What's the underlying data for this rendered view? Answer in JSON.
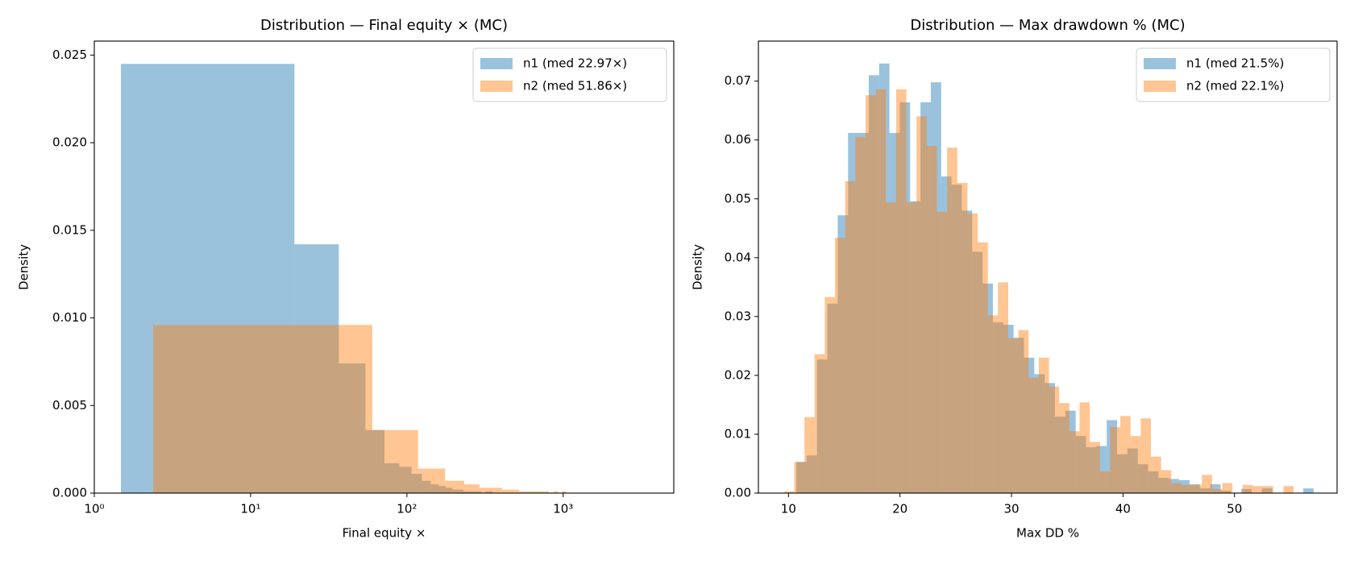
{
  "chart_data": [
    {
      "type": "histogram",
      "title": "Distribution — Final equity × (MC)",
      "x_label": "Final equity ×",
      "y_label": "Density",
      "xscale": "log",
      "xlim": [
        1,
        5100
      ],
      "ylim": [
        0,
        0.0258
      ],
      "xticks": [
        {
          "value": 1,
          "label": "10⁰"
        },
        {
          "value": 10,
          "label": "10¹"
        },
        {
          "value": 100,
          "label": "10²"
        },
        {
          "value": 1000,
          "label": "10³"
        }
      ],
      "yticks": [
        {
          "value": 0,
          "label": "0.000"
        },
        {
          "value": 0.005,
          "label": "0.005"
        },
        {
          "value": 0.01,
          "label": "0.010"
        },
        {
          "value": 0.015,
          "label": "0.015"
        },
        {
          "value": 0.02,
          "label": "0.020"
        },
        {
          "value": 0.025,
          "label": "0.025"
        }
      ],
      "legend": "upper right",
      "alpha": 0.45,
      "series": [
        {
          "name": "n1 (med 22.97×)",
          "color": "#1f77b4",
          "bins": [
            1.48,
            19.08,
            36.68,
            54.28,
            71.88,
            89.48,
            107.08,
            124.68,
            142.28,
            159.88,
            177.48,
            195.08,
            212.68,
            230.28,
            247.88,
            265.48,
            283.08,
            300.68,
            318.28,
            335.88,
            353.48
          ],
          "values": [
            0.0245,
            0.0142,
            0.0074,
            0.0036,
            0.0017,
            0.0015,
            0.0011,
            0.0007,
            0.0005,
            0.0004,
            0.0003,
            0.0002,
            0.0002,
            0.0001,
            0.0001,
            0.0001,
            0.0001,
            0,
            0.0001,
            0.0001
          ]
        },
        {
          "name": "n2 (med 51.86×)",
          "color": "#ff7f0e",
          "bins": [
            2.38,
            60.08,
            117.78,
            175.48,
            233.18,
            290.88,
            348.58,
            406.28,
            463.98,
            521.68,
            579.38,
            637.08,
            694.78,
            752.48,
            810.18,
            867.88,
            925.58,
            983.28,
            1040.98
          ],
          "values": [
            0.0096,
            0.0036,
            0.0014,
            0.0007,
            0.0005,
            0.0003,
            0.0003,
            0.0002,
            0.0002,
            0.0001,
            0.0001,
            0.0001,
            0.0001,
            0.0001,
            0,
            0.0001,
            0,
            0.0001
          ]
        }
      ]
    },
    {
      "type": "histogram",
      "title": "Distribution — Max drawdown % (MC)",
      "x_label": "Max DD %",
      "y_label": "Density",
      "xlim": [
        7.3,
        59.2
      ],
      "ylim": [
        0,
        0.0768
      ],
      "xticks": [
        10,
        20,
        30,
        40,
        50
      ],
      "yticks": [
        {
          "value": 0,
          "label": "0.00"
        },
        {
          "value": 0.01,
          "label": "0.01"
        },
        {
          "value": 0.02,
          "label": "0.02"
        },
        {
          "value": 0.03,
          "label": "0.03"
        },
        {
          "value": 0.04,
          "label": "0.04"
        },
        {
          "value": 0.05,
          "label": "0.05"
        },
        {
          "value": 0.06,
          "label": "0.06"
        },
        {
          "value": 0.07,
          "label": "0.07"
        }
      ],
      "legend": "upper right",
      "alpha": 0.45,
      "series": [
        {
          "name": "n1 (med 21.5%)",
          "color": "#1f77b4",
          "bins": [
            10.7,
            11.628,
            12.556,
            13.484,
            14.412,
            15.34,
            16.268,
            17.196,
            18.124,
            19.052,
            19.98,
            20.908,
            21.836,
            22.764,
            23.692,
            24.62,
            25.548,
            26.476,
            27.404,
            28.332,
            29.26,
            30.188,
            31.116,
            32.044,
            32.972,
            33.9,
            34.828,
            35.756,
            36.684,
            37.612,
            38.54,
            39.468,
            40.396,
            41.324,
            42.252,
            43.18,
            44.108,
            45.036,
            45.964,
            46.892,
            47.82,
            48.748,
            49.676,
            50.604,
            51.532,
            52.46,
            53.388,
            54.316,
            55.244,
            56.172,
            57.1
          ],
          "values": [
            0.0053,
            0.0064,
            0.0227,
            0.0322,
            0.0472,
            0.0612,
            0.0612,
            0.071,
            0.073,
            0.0612,
            0.0664,
            0.0496,
            0.0664,
            0.0698,
            0.0538,
            0.0524,
            0.048,
            0.041,
            0.0356,
            0.029,
            0.0286,
            0.0264,
            0.023,
            0.0202,
            0.0187,
            0.013,
            0.014,
            0.0097,
            0.0078,
            0.008,
            0.0124,
            0.0066,
            0.0076,
            0.0049,
            0.0037,
            0.0026,
            0.0024,
            0.0022,
            0.0015,
            0.0008,
            0.0015,
            0.0004,
            0,
            0.0007,
            0,
            0.0008,
            0,
            0,
            0,
            0.0008
          ]
        },
        {
          "name": "n2 (med 22.1%)",
          "color": "#ff7f0e",
          "bins": [
            9.6,
            10.514,
            11.428,
            12.342,
            13.256,
            14.17,
            15.084,
            15.998,
            16.912,
            17.826,
            18.74,
            19.654,
            20.568,
            21.482,
            22.396,
            23.31,
            24.224,
            25.138,
            26.052,
            26.966,
            27.88,
            28.794,
            29.708,
            30.622,
            31.536,
            32.45,
            33.364,
            34.278,
            35.192,
            36.106,
            37.02,
            37.934,
            38.848,
            39.762,
            40.676,
            41.59,
            42.504,
            43.418,
            44.332,
            45.246,
            46.16,
            47.074,
            47.988,
            48.902,
            49.816,
            50.73,
            51.644,
            52.558,
            53.472,
            54.386,
            55.3
          ],
          "values": [
            0.0003,
            0.0053,
            0.0129,
            0.0236,
            0.0333,
            0.0434,
            0.053,
            0.0605,
            0.0676,
            0.0686,
            0.0494,
            0.0686,
            0.0494,
            0.064,
            0.059,
            0.0478,
            0.0587,
            0.0527,
            0.0475,
            0.0426,
            0.0302,
            0.0358,
            0.0263,
            0.0277,
            0.0196,
            0.023,
            0.0181,
            0.0153,
            0.0105,
            0.0154,
            0.0087,
            0.0037,
            0.0112,
            0.0131,
            0.0097,
            0.0127,
            0.0062,
            0.0039,
            0.0017,
            0.0014,
            0.0014,
            0.0031,
            0.0007,
            0.0017,
            0,
            0.0014,
            0.0012,
            0.0012,
            0,
            0.0012
          ]
        }
      ]
    }
  ]
}
